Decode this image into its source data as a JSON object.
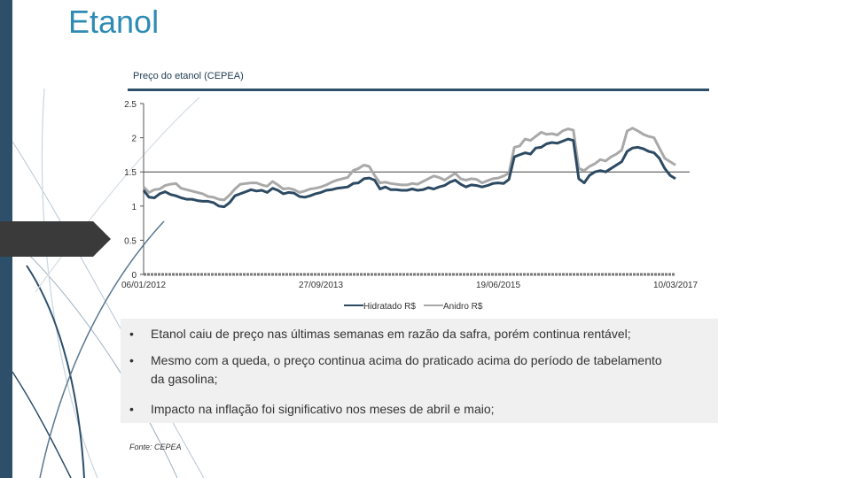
{
  "page": {
    "title": "Etanol"
  },
  "chart_data": {
    "type": "line",
    "title": "Preço do etanol (CEPEA)",
    "xlabel": "",
    "ylabel": "",
    "ylim": [
      0,
      2.5
    ],
    "yticks": [
      "0",
      "0.5",
      "1",
      "1.5",
      "2",
      "2.5"
    ],
    "x_tick_labels": [
      "06/01/2012",
      "27/09/2013",
      "19/06/2015",
      "10/03/2017"
    ],
    "x_tick_index": [
      0,
      33,
      66,
      99
    ],
    "reference_line": 1.5,
    "legend_position": "bottom",
    "series": [
      {
        "name": "Hidratado R$",
        "color": "#2d4a63",
        "values": [
          1.23,
          1.13,
          1.12,
          1.18,
          1.21,
          1.17,
          1.15,
          1.12,
          1.1,
          1.1,
          1.08,
          1.07,
          1.07,
          1.05,
          1.0,
          0.99,
          1.05,
          1.15,
          1.18,
          1.21,
          1.24,
          1.22,
          1.23,
          1.2,
          1.26,
          1.23,
          1.18,
          1.2,
          1.19,
          1.14,
          1.13,
          1.15,
          1.18,
          1.2,
          1.23,
          1.24,
          1.26,
          1.27,
          1.28,
          1.33,
          1.34,
          1.4,
          1.41,
          1.38,
          1.25,
          1.28,
          1.24,
          1.24,
          1.23,
          1.23,
          1.25,
          1.23,
          1.24,
          1.27,
          1.25,
          1.28,
          1.3,
          1.35,
          1.38,
          1.32,
          1.28,
          1.31,
          1.3,
          1.28,
          1.3,
          1.33,
          1.34,
          1.33,
          1.39,
          1.72,
          1.75,
          1.78,
          1.76,
          1.85,
          1.86,
          1.91,
          1.93,
          1.92,
          1.95,
          1.98,
          1.96,
          1.4,
          1.34,
          1.45,
          1.5,
          1.52,
          1.5,
          1.55,
          1.6,
          1.65,
          1.8,
          1.85,
          1.86,
          1.84,
          1.8,
          1.78,
          1.7,
          1.55,
          1.45,
          1.4
        ]
      },
      {
        "name": "Anidro R$",
        "color": "#a9a9a9",
        "values": [
          1.28,
          1.2,
          1.24,
          1.25,
          1.3,
          1.32,
          1.33,
          1.26,
          1.24,
          1.22,
          1.2,
          1.18,
          1.14,
          1.13,
          1.1,
          1.09,
          1.16,
          1.25,
          1.32,
          1.33,
          1.34,
          1.34,
          1.31,
          1.29,
          1.36,
          1.31,
          1.25,
          1.26,
          1.24,
          1.2,
          1.22,
          1.25,
          1.26,
          1.28,
          1.31,
          1.35,
          1.38,
          1.4,
          1.42,
          1.52,
          1.55,
          1.6,
          1.58,
          1.45,
          1.34,
          1.35,
          1.33,
          1.32,
          1.31,
          1.31,
          1.33,
          1.32,
          1.36,
          1.4,
          1.44,
          1.42,
          1.38,
          1.43,
          1.48,
          1.4,
          1.38,
          1.4,
          1.39,
          1.34,
          1.37,
          1.4,
          1.41,
          1.44,
          1.48,
          1.86,
          1.88,
          1.98,
          1.96,
          2.02,
          2.08,
          2.05,
          2.06,
          2.04,
          2.1,
          2.13,
          2.11,
          1.55,
          1.52,
          1.58,
          1.62,
          1.68,
          1.66,
          1.72,
          1.76,
          1.82,
          2.1,
          2.14,
          2.1,
          2.05,
          2.02,
          2.0,
          1.85,
          1.7,
          1.65,
          1.6
        ]
      }
    ]
  },
  "bullets": [
    {
      "symbol": "•",
      "text": "Etanol caiu de preço nas últimas semanas em razão da safra, porém continua rentável;"
    },
    {
      "symbol": "•",
      "text": "Mesmo com a queda, o preço continua acima do praticado acima do período de tabelamento da gasolina;"
    },
    {
      "symbol": "•",
      "text": "Impacto na inflação foi significativo nos meses de abril e maio;"
    }
  ],
  "source": "Fonte: CEPEA"
}
